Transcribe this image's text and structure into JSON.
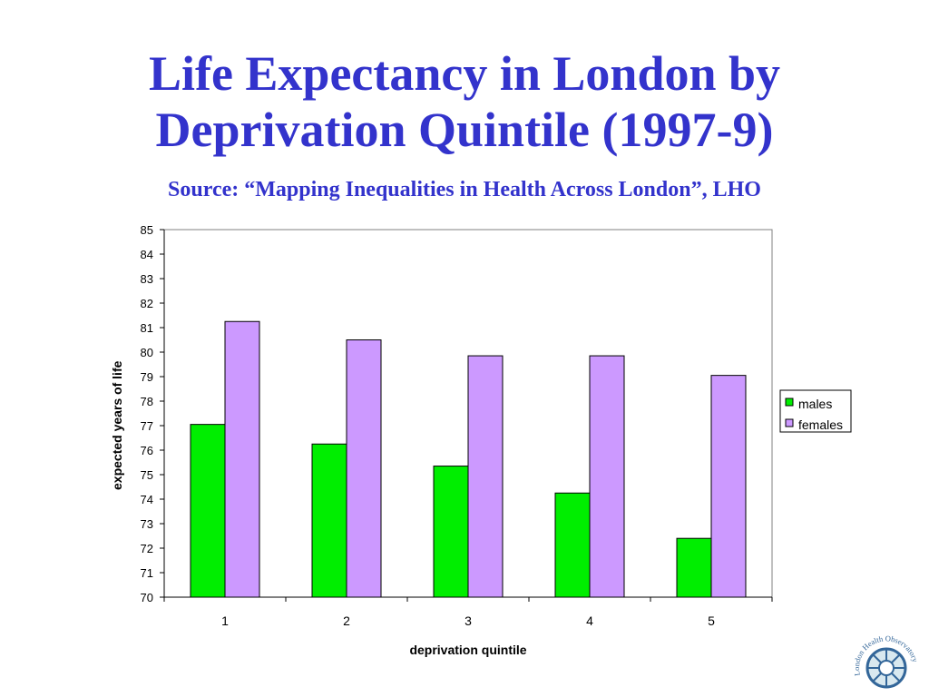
{
  "slide": {
    "title_line1": "Life Expectancy in London by",
    "title_line2": "Deprivation Quintile (1997-9)",
    "subtitle": "Source: “Mapping Inequalities in Health Across London”, LHO"
  },
  "logo": {
    "text": "London Health Observatory",
    "icon": "wheel-icon"
  },
  "colors": {
    "title": "#3333cc",
    "males": "#00ee00",
    "females": "#cc99ff"
  },
  "chart_data": {
    "type": "bar",
    "title": "",
    "xlabel": "deprivation quintile",
    "ylabel": "expected years of life",
    "categories": [
      "1",
      "2",
      "3",
      "4",
      "5"
    ],
    "series": [
      {
        "name": "males",
        "values": [
          77.05,
          76.25,
          75.35,
          74.25,
          72.4
        ]
      },
      {
        "name": "females",
        "values": [
          81.25,
          80.5,
          79.85,
          79.85,
          79.05
        ]
      }
    ],
    "ylim": [
      70,
      85
    ],
    "yticks": [
      "70",
      "71",
      "72",
      "73",
      "74",
      "75",
      "76",
      "77",
      "78",
      "79",
      "80",
      "81",
      "82",
      "83",
      "84",
      "85"
    ],
    "grid": false,
    "legend_position": "right"
  }
}
